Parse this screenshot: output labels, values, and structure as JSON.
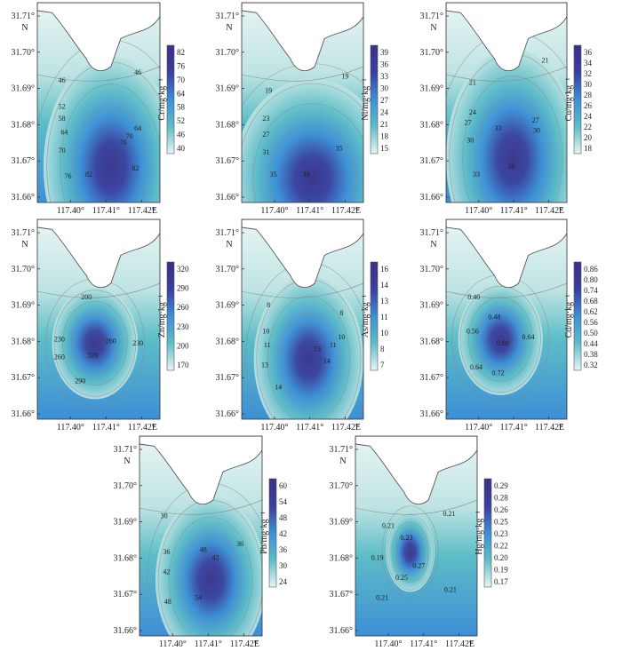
{
  "axes": {
    "y_ticks": [
      "31.71°",
      "31.70°",
      "31.69°",
      "31.68°",
      "31.67°",
      "31.66°"
    ],
    "x_ticks": [
      "117.40°",
      "117.41°",
      "117.42°"
    ],
    "north_label": "N",
    "east_label": "E"
  },
  "colors": {
    "low": "#e8f5f4",
    "mid_low": "#bfe4e3",
    "mid": "#5dbdc7",
    "mid_high": "#3d8fd6",
    "high": "#3a3e9e",
    "peak": "#3a2f87",
    "land": "#ffffff",
    "coast": "#555555",
    "contour": "#888888"
  },
  "panels": [
    {
      "id": "cr",
      "colorbar_title": "Cr/mg·kg⁻¹",
      "colorbar_ticks": [
        "82",
        "76",
        "70",
        "64",
        "58",
        "52",
        "46",
        "40"
      ],
      "contour_labels": [
        "46",
        "46",
        "52",
        "58",
        "64",
        "64",
        "70",
        "70",
        "76",
        "76",
        "82",
        "82"
      ]
    },
    {
      "id": "ni",
      "colorbar_title": "Ni/mg·kg⁻¹",
      "colorbar_ticks": [
        "39",
        "36",
        "33",
        "30",
        "27",
        "24",
        "21",
        "18",
        "15"
      ],
      "contour_labels": [
        "19",
        "19",
        "23",
        "27",
        "31",
        "35",
        "35",
        "39"
      ]
    },
    {
      "id": "cu",
      "colorbar_title": "Cu/mg·kg⁻¹",
      "colorbar_ticks": [
        "36",
        "34",
        "32",
        "30",
        "28",
        "26",
        "24",
        "22",
        "20",
        "18"
      ],
      "contour_labels": [
        "21",
        "21",
        "24",
        "27",
        "27",
        "30",
        "30",
        "33",
        "33",
        "36"
      ]
    },
    {
      "id": "zn",
      "colorbar_title": "Zn/mg·kg⁻¹",
      "colorbar_ticks": [
        "320",
        "290",
        "260",
        "230",
        "200",
        "170"
      ],
      "contour_labels": [
        "200",
        "230",
        "230",
        "260",
        "260",
        "320",
        "290"
      ]
    },
    {
      "id": "as",
      "colorbar_title": "As/mg·kg⁻¹",
      "colorbar_ticks": [
        "16",
        "14",
        "13",
        "11",
        "10",
        "8",
        "7"
      ],
      "contour_labels": [
        "8",
        "8",
        "10",
        "10",
        "11",
        "11",
        "13",
        "13",
        "14",
        "14"
      ]
    },
    {
      "id": "cd",
      "colorbar_title": "Cd/mg·kg⁻¹",
      "colorbar_ticks": [
        "0.86",
        "0.80",
        "0.74",
        "0.68",
        "0.62",
        "0.56",
        "0.50",
        "0.44",
        "0.38",
        "0.32"
      ],
      "contour_labels": [
        "0.40",
        "0.48",
        "0.56",
        "0.64",
        "0.80",
        "0.64",
        "0.72"
      ]
    },
    {
      "id": "pb",
      "colorbar_title": "Pb/mg·kg⁻¹",
      "colorbar_ticks": [
        "60",
        "54",
        "48",
        "42",
        "36",
        "30",
        "24"
      ],
      "contour_labels": [
        "30",
        "36",
        "36",
        "42",
        "42",
        "48",
        "48",
        "54"
      ]
    },
    {
      "id": "hg",
      "colorbar_title": "Hg/mg·kg⁻¹",
      "colorbar_ticks": [
        "0.29",
        "0.28",
        "0.26",
        "0.25",
        "0.23",
        "0.22",
        "0.20",
        "0.19",
        "0.17"
      ],
      "contour_labels": [
        "0.21",
        "0.21",
        "0.19",
        "0.23",
        "0.27",
        "0.25",
        "0.21",
        "0.21"
      ]
    }
  ]
}
